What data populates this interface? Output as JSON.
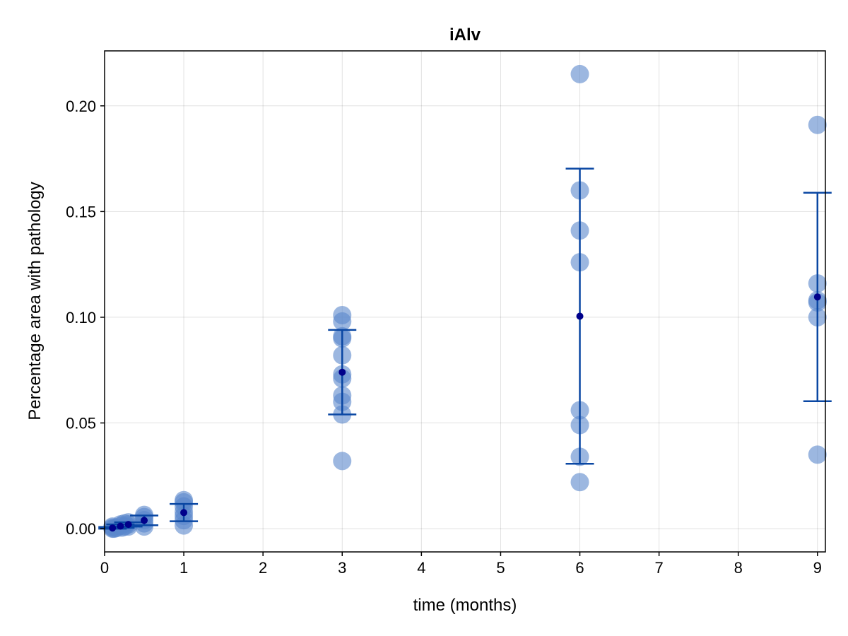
{
  "chart_data": {
    "type": "scatter",
    "title": "iAlv",
    "xlabel": "time (months)",
    "ylabel": "Percentage area with pathology",
    "xlim": [
      0,
      9.1
    ],
    "ylim": [
      -0.011,
      0.226
    ],
    "xticks": [
      0,
      1,
      2,
      3,
      4,
      5,
      6,
      7,
      8,
      9
    ],
    "yticks": [
      0.0,
      0.05,
      0.1,
      0.15,
      0.2
    ],
    "ytick_labels": [
      "0.00",
      "0.05",
      "0.10",
      "0.15",
      "0.20"
    ],
    "grid": true,
    "legend": "none",
    "colors": {
      "points": "#5a87cc",
      "errorbar": "#0a47a3",
      "mean": "#00008b"
    },
    "points": [
      {
        "x": 0.1,
        "y": 0.0
      },
      {
        "x": 0.1,
        "y": 0.0005
      },
      {
        "x": 0.1,
        "y": 0.001
      },
      {
        "x": 0.12,
        "y": 0.0
      },
      {
        "x": 0.15,
        "y": 0.0003
      },
      {
        "x": 0.2,
        "y": 0.0012
      },
      {
        "x": 0.2,
        "y": 0.002
      },
      {
        "x": 0.22,
        "y": 0.0005
      },
      {
        "x": 0.25,
        "y": 0.001
      },
      {
        "x": 0.25,
        "y": 0.0025
      },
      {
        "x": 0.3,
        "y": 0.001
      },
      {
        "x": 0.3,
        "y": 0.002
      },
      {
        "x": 0.3,
        "y": 0.003
      },
      {
        "x": 0.5,
        "y": 0.001
      },
      {
        "x": 0.5,
        "y": 0.0025
      },
      {
        "x": 0.5,
        "y": 0.004
      },
      {
        "x": 0.5,
        "y": 0.0055
      },
      {
        "x": 0.5,
        "y": 0.0065
      },
      {
        "x": 1,
        "y": 0.0015
      },
      {
        "x": 1,
        "y": 0.004
      },
      {
        "x": 1,
        "y": 0.006
      },
      {
        "x": 1,
        "y": 0.008
      },
      {
        "x": 1,
        "y": 0.0105
      },
      {
        "x": 1,
        "y": 0.0125
      },
      {
        "x": 1,
        "y": 0.0135
      },
      {
        "x": 3,
        "y": 0.032
      },
      {
        "x": 3,
        "y": 0.054
      },
      {
        "x": 3,
        "y": 0.06
      },
      {
        "x": 3,
        "y": 0.063
      },
      {
        "x": 3,
        "y": 0.071
      },
      {
        "x": 3,
        "y": 0.073
      },
      {
        "x": 3,
        "y": 0.082
      },
      {
        "x": 3,
        "y": 0.09
      },
      {
        "x": 3,
        "y": 0.091
      },
      {
        "x": 3,
        "y": 0.098
      },
      {
        "x": 3,
        "y": 0.101
      },
      {
        "x": 6,
        "y": 0.022
      },
      {
        "x": 6,
        "y": 0.034
      },
      {
        "x": 6,
        "y": 0.049
      },
      {
        "x": 6,
        "y": 0.056
      },
      {
        "x": 6,
        "y": 0.126
      },
      {
        "x": 6,
        "y": 0.141
      },
      {
        "x": 6,
        "y": 0.16
      },
      {
        "x": 6,
        "y": 0.215
      },
      {
        "x": 9,
        "y": 0.035
      },
      {
        "x": 9,
        "y": 0.1
      },
      {
        "x": 9,
        "y": 0.107
      },
      {
        "x": 9,
        "y": 0.108
      },
      {
        "x": 9,
        "y": 0.116
      },
      {
        "x": 9,
        "y": 0.191
      }
    ],
    "summary": [
      {
        "x": 0.1,
        "mean": 0.0003,
        "lower": 0.0,
        "upper": 0.0008
      },
      {
        "x": 0.2,
        "mean": 0.0012,
        "lower": 0.0004,
        "upper": 0.002
      },
      {
        "x": 0.3,
        "mean": 0.002,
        "lower": 0.001,
        "upper": 0.003
      },
      {
        "x": 0.5,
        "mean": 0.0039,
        "lower": 0.0016,
        "upper": 0.0062
      },
      {
        "x": 1,
        "mean": 0.0076,
        "lower": 0.0035,
        "upper": 0.0117
      },
      {
        "x": 3,
        "mean": 0.074,
        "lower": 0.054,
        "upper": 0.094
      },
      {
        "x": 6,
        "mean": 0.1005,
        "lower": 0.0307,
        "upper": 0.1703
      },
      {
        "x": 9,
        "mean": 0.1096,
        "lower": 0.0603,
        "upper": 0.1589
      }
    ]
  }
}
